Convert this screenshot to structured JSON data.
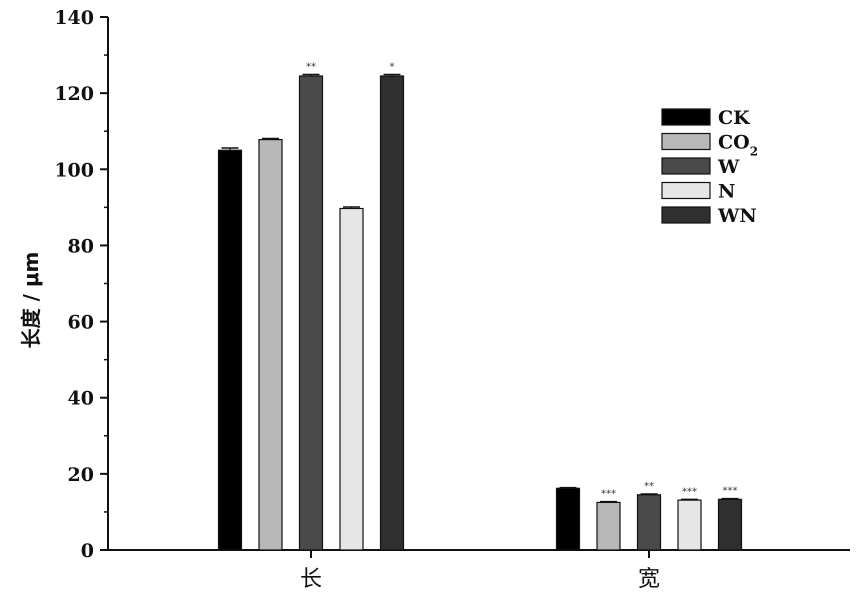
{
  "chart_data": {
    "type": "bar",
    "ylabel": "长度 / μm",
    "xlabel": "",
    "ylim": [
      0,
      140
    ],
    "yticks": [
      0,
      20,
      40,
      60,
      80,
      100,
      120,
      140
    ],
    "categories": [
      "长",
      "宽"
    ],
    "grid": false,
    "legend_position": "right",
    "series": [
      {
        "name": "CK",
        "subscript": "",
        "values": [
          105,
          16.2
        ],
        "errors": [
          0.6,
          0.2
        ],
        "color": "#000000",
        "annotations": [
          "",
          ""
        ]
      },
      {
        "name": "CO",
        "subscript": "2",
        "values": [
          107.8,
          12.5
        ],
        "errors": [
          0.3,
          0.2
        ],
        "color": "#b8b8b8",
        "annotations": [
          "",
          "***"
        ]
      },
      {
        "name": "W",
        "subscript": "",
        "values": [
          124.5,
          14.5
        ],
        "errors": [
          0.4,
          0.2
        ],
        "color": "#4a4a4a",
        "annotations": [
          "**",
          "**"
        ]
      },
      {
        "name": "N",
        "subscript": "",
        "values": [
          89.7,
          13.1
        ],
        "errors": [
          0.4,
          0.2
        ],
        "color": "#e6e6e6",
        "annotations": [
          "",
          "***"
        ]
      },
      {
        "name": "WN",
        "subscript": "",
        "values": [
          124.5,
          13.3
        ],
        "errors": [
          0.4,
          0.2
        ],
        "color": "#2f2f2f",
        "annotations": [
          "*",
          "***"
        ]
      }
    ]
  }
}
